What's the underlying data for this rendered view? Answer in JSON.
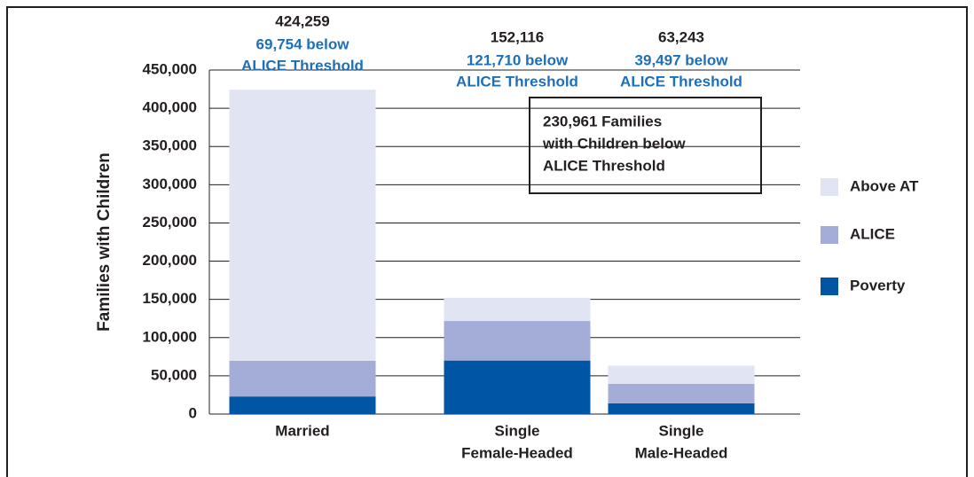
{
  "chart_data": {
    "type": "stacked-bar",
    "y_label": "Families with Children",
    "categories": [
      [
        "Married"
      ],
      [
        "Single",
        "Female-Headed"
      ],
      [
        "Single",
        "Male-Headed"
      ]
    ],
    "series": [
      {
        "name": "Poverty",
        "color": "#0055a5",
        "values": [
          23000,
          70000,
          14000
        ]
      },
      {
        "name": "ALICE",
        "color": "#a4acd8",
        "values": [
          46754,
          51710,
          25497
        ]
      },
      {
        "name": "Above AT",
        "color": "#e1e4f2",
        "values": [
          354505,
          30406,
          23746
        ]
      }
    ],
    "annotations": [
      {
        "total": "424,259",
        "below": [
          "69,754 below",
          "ALICE Threshold"
        ]
      },
      {
        "total": "152,116",
        "below": [
          "121,710 below",
          "ALICE Threshold"
        ]
      },
      {
        "total": "63,243",
        "below": [
          "39,497 below",
          "ALICE Threshold"
        ]
      }
    ],
    "callout": [
      "230,961 Families",
      "with Children below",
      "ALICE Threshold"
    ],
    "ylim": [
      0,
      450000
    ],
    "yticks": [
      {
        "value": 0,
        "label": "0"
      },
      {
        "value": 50000,
        "label": "50,000"
      },
      {
        "value": 100000,
        "label": "100,000"
      },
      {
        "value": 150000,
        "label": "150,000"
      },
      {
        "value": 200000,
        "label": "200,000"
      },
      {
        "value": 250000,
        "label": "250,000"
      },
      {
        "value": 300000,
        "label": "300,000"
      },
      {
        "value": 350000,
        "label": "350,000"
      },
      {
        "value": 400000,
        "label": "400,000"
      },
      {
        "value": 450000,
        "label": "450,000"
      }
    ],
    "grid": true,
    "legend": "right"
  }
}
